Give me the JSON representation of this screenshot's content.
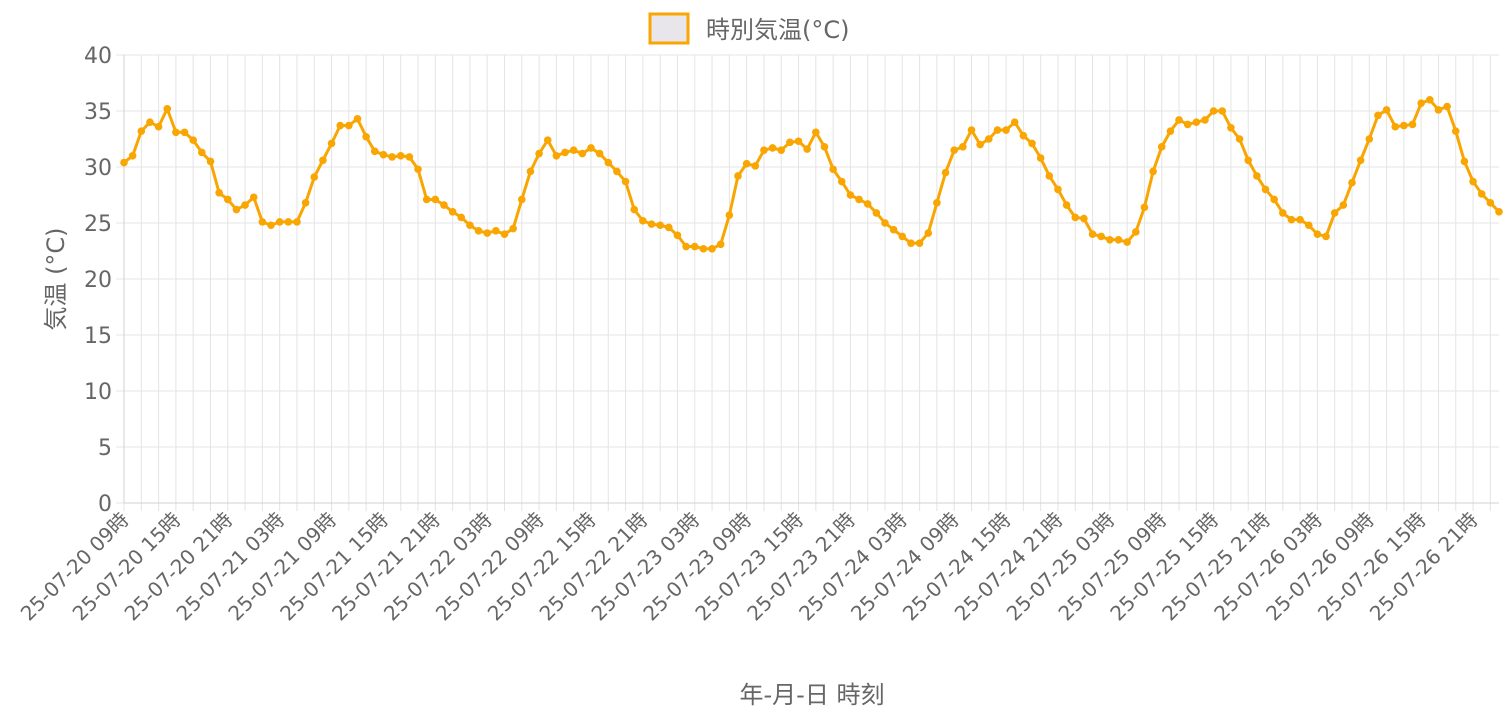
{
  "chart_data": {
    "type": "line",
    "title": "",
    "xlabel": "年-月-日 時刻",
    "ylabel": "気温 (°C)",
    "ylim": [
      0,
      40
    ],
    "yticks": [
      0,
      5,
      10,
      15,
      20,
      25,
      30,
      35,
      40
    ],
    "grid": true,
    "legend_position": "top-center",
    "x_start_hour": "2025-07-20 09:00",
    "x_interval_hours": 1,
    "tick_labels": [
      "25-07-20 09時",
      "25-07-20 15時",
      "25-07-20 21時",
      "25-07-21 03時",
      "25-07-21 09時",
      "25-07-21 15時",
      "25-07-21 21時",
      "25-07-22 03時",
      "25-07-22 09時",
      "25-07-22 15時",
      "25-07-22 21時",
      "25-07-23 03時",
      "25-07-23 09時",
      "25-07-23 15時",
      "25-07-23 21時",
      "25-07-24 03時",
      "25-07-24 09時",
      "25-07-24 15時",
      "25-07-24 21時",
      "25-07-25 03時",
      "25-07-25 09時",
      "25-07-25 15時",
      "25-07-25 21時",
      "25-07-26 03時",
      "25-07-26 09時",
      "25-07-26 15時",
      "25-07-26 21時"
    ],
    "tick_every": 6,
    "series": [
      {
        "name": "時別気温(°C)",
        "color": "#f9a602",
        "fill_color": "#e8e6ea",
        "values": [
          30.4,
          31.0,
          33.2,
          34.0,
          33.6,
          35.2,
          33.1,
          33.1,
          32.4,
          31.3,
          30.5,
          27.7,
          27.1,
          26.2,
          26.6,
          27.3,
          25.1,
          24.8,
          25.1,
          25.1,
          25.1,
          26.8,
          29.1,
          30.6,
          32.1,
          33.7,
          33.7,
          34.3,
          32.7,
          31.4,
          31.1,
          30.9,
          31.0,
          30.9,
          29.8,
          27.1,
          27.1,
          26.6,
          26.0,
          25.5,
          24.8,
          24.3,
          24.1,
          24.3,
          24.0,
          24.5,
          27.1,
          29.6,
          31.2,
          32.4,
          31.0,
          31.3,
          31.5,
          31.2,
          31.7,
          31.2,
          30.4,
          29.6,
          28.7,
          26.2,
          25.2,
          24.9,
          24.8,
          24.6,
          23.9,
          22.9,
          22.9,
          22.7,
          22.7,
          23.1,
          25.7,
          29.2,
          30.3,
          30.1,
          31.5,
          31.7,
          31.5,
          32.2,
          32.3,
          31.6,
          33.1,
          31.8,
          29.8,
          28.7,
          27.5,
          27.1,
          26.7,
          25.9,
          25.0,
          24.4,
          23.8,
          23.2,
          23.2,
          24.1,
          26.8,
          29.5,
          31.5,
          31.8,
          33.3,
          32.0,
          32.5,
          33.3,
          33.3,
          34.0,
          32.8,
          32.1,
          30.8,
          29.2,
          28.0,
          26.6,
          25.5,
          25.4,
          24.0,
          23.8,
          23.5,
          23.5,
          23.3,
          24.2,
          26.4,
          29.6,
          31.8,
          33.2,
          34.2,
          33.8,
          34.0,
          34.2,
          35.0,
          35.0,
          33.5,
          32.5,
          30.6,
          29.2,
          28.0,
          27.1,
          25.9,
          25.3,
          25.3,
          24.8,
          24.0,
          23.8,
          25.9,
          26.6,
          28.6,
          30.6,
          32.5,
          34.6,
          35.1,
          33.6,
          33.7,
          33.8,
          35.7,
          36.0,
          35.1,
          35.4,
          33.2,
          30.5,
          28.7,
          27.6,
          26.8,
          26.0
        ]
      }
    ]
  }
}
